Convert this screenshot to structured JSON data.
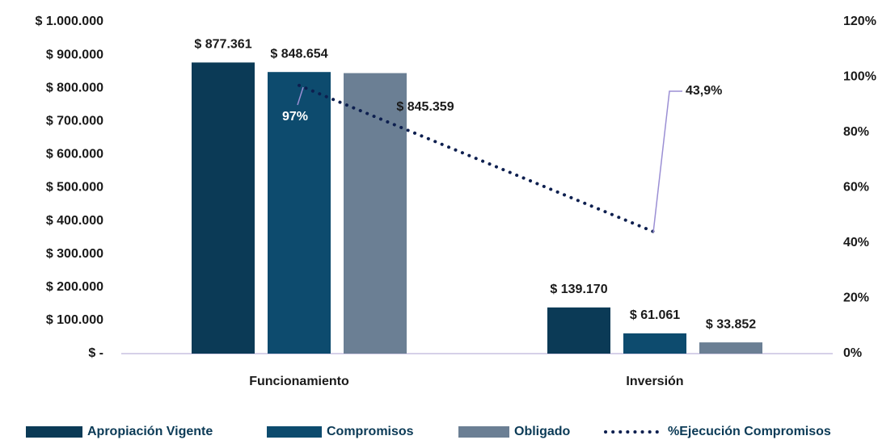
{
  "chart_data": {
    "type": "bar",
    "categories": [
      "Funcionamiento",
      "Inversión"
    ],
    "series": [
      {
        "name": "Apropiación Vigente",
        "color": "#0b3a56",
        "values": [
          877361,
          139170
        ],
        "value_labels": [
          "$ 877.361",
          "$ 139.170"
        ]
      },
      {
        "name": "Compromisos",
        "color": "#0d4b6e",
        "values": [
          848654,
          61061
        ],
        "value_labels": [
          "$ 848.654",
          "$ 61.061"
        ]
      },
      {
        "name": "Obligado",
        "color": "#6b7f94",
        "values": [
          845359,
          33852
        ],
        "value_labels": [
          "$ 845.359",
          "$ 33.852"
        ]
      },
      {
        "name": "%Ejecución Compromisos",
        "type": "line",
        "axis": "y2",
        "color": "#0d1f4f",
        "values": [
          97,
          43.9
        ],
        "value_labels": [
          "97%",
          "43,9%"
        ]
      }
    ],
    "ylim": [
      0,
      1000000
    ],
    "yticks": [
      {
        "value": 0,
        "label": "$ -"
      },
      {
        "value": 100000,
        "label": "$ 100.000"
      },
      {
        "value": 200000,
        "label": "$ 200.000"
      },
      {
        "value": 300000,
        "label": "$ 300.000"
      },
      {
        "value": 400000,
        "label": "$ 400.000"
      },
      {
        "value": 500000,
        "label": "$ 500.000"
      },
      {
        "value": 600000,
        "label": "$ 600.000"
      },
      {
        "value": 700000,
        "label": "$ 700.000"
      },
      {
        "value": 800000,
        "label": "$ 800.000"
      },
      {
        "value": 900000,
        "label": "$ 900.000"
      },
      {
        "value": 1000000,
        "label": "$ 1.000.000"
      }
    ],
    "y2lim": [
      0,
      120
    ],
    "y2ticks": [
      {
        "value": 0,
        "label": "0%"
      },
      {
        "value": 20,
        "label": "20%"
      },
      {
        "value": 40,
        "label": "40%"
      },
      {
        "value": 60,
        "label": "60%"
      },
      {
        "value": 80,
        "label": "80%"
      },
      {
        "value": 100,
        "label": "100%"
      },
      {
        "value": 120,
        "label": "120%"
      }
    ],
    "grid": false,
    "legend": "bottom"
  }
}
